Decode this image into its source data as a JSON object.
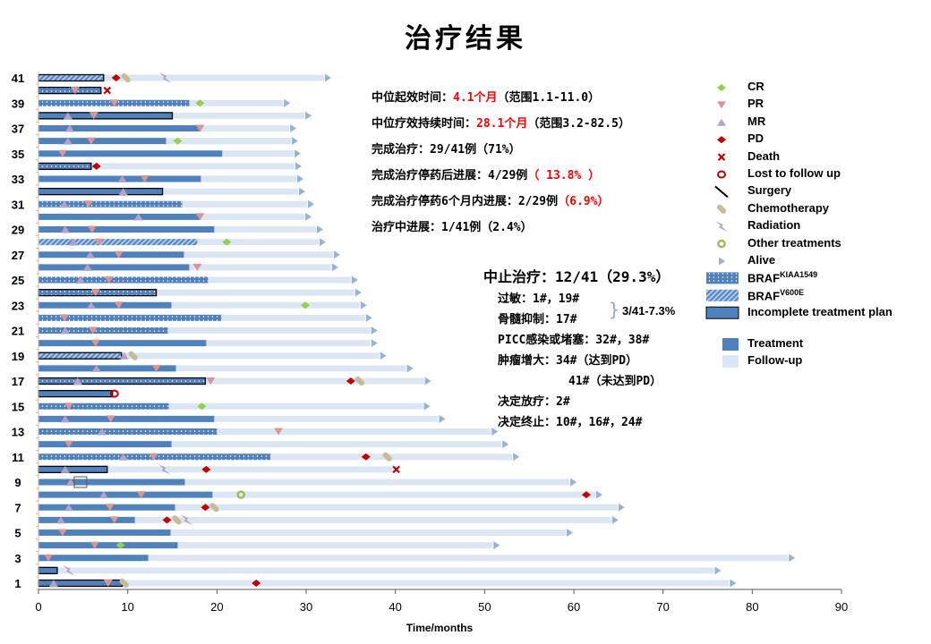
{
  "title": "治疗结果",
  "summary": {
    "line1": {
      "label": "中位起效时间：",
      "value": "4.1个月",
      "range": "（范围1.1-11.0）"
    },
    "line2": {
      "label": "中位疗效持续时间：",
      "value": "28.1个月",
      "range": "（范围3.2-82.5）"
    },
    "line3": "完成治疗：29/41例（71%）",
    "line4": {
      "label": "完成治疗停药后进展：4/29例",
      "value": "（ 13.8% ）"
    },
    "line5": {
      "label": "完成治疗停药6个月内进展：2/29例",
      "value": "（6.9%）"
    },
    "line6": "治疗中进展：1/41例（2.4%）"
  },
  "discontinued": {
    "heading": "中止治疗：12/41（29.3%）",
    "allergy": "过敏：1#，19#",
    "marrow": "骨髓抑制：17#",
    "bracket": "}",
    "bracket_note": "3/41-7.3%",
    "picc": "PICC感染或堵塞：32#，38#",
    "tumor_growth": "肿瘤增大：34#（达到PD）",
    "tumor_growth2": "41#（未达到PD）",
    "radiotherapy": "决定放疗：2#",
    "terminate": "决定终止：10#，16#，24#"
  },
  "legend": [
    {
      "type": "CR",
      "label": "CR"
    },
    {
      "type": "PR",
      "label": "PR"
    },
    {
      "type": "MR",
      "label": "MR"
    },
    {
      "type": "PD",
      "label": "PD"
    },
    {
      "type": "death",
      "label": "Death"
    },
    {
      "type": "lost",
      "label": "Lost to follow up"
    },
    {
      "type": "surgery",
      "label": "Surgery"
    },
    {
      "type": "chemo",
      "label": "Chemotherapy"
    },
    {
      "type": "radiation",
      "label": "Radiation"
    },
    {
      "type": "other",
      "label": "Other treatments"
    },
    {
      "type": "alive",
      "label": "Alive"
    },
    {
      "type": "KIAA1549",
      "label": "BRAF",
      "sup": "KIAA1549"
    },
    {
      "type": "V600E",
      "label": "BRAF",
      "sup": "V600E"
    },
    {
      "type": "incomplete",
      "label": "Incomplete treatment plan"
    },
    {
      "type": "treatment",
      "label": "Treatment"
    },
    {
      "type": "followup",
      "label": "Follow-up"
    }
  ],
  "colors": {
    "treatment": "#4f81bd",
    "followup": "#dce6f2",
    "CR": "#92d050",
    "PR": "#d99694",
    "MR": "#b3a2c7",
    "PD": "#c00000",
    "death": "#c00000",
    "lost": "#c00000",
    "chemo": "#c4bd97",
    "radiation": "#b3a2c7",
    "other": "#9bbb59",
    "alive": "#95b3d7"
  },
  "chart_data": {
    "type": "swimmer",
    "xlabel": "Time/months",
    "xlim": [
      0,
      90
    ],
    "xticks": [
      0,
      10,
      20,
      30,
      40,
      50,
      60,
      70,
      80,
      90
    ],
    "ytick_labels": [
      "1",
      "3",
      "5",
      "7",
      "9",
      "11",
      "13",
      "15",
      "17",
      "19",
      "21",
      "23",
      "25",
      "27",
      "29",
      "31",
      "33",
      "35",
      "37",
      "39",
      "41"
    ],
    "patients": [
      {
        "id": 1,
        "treatment_end": 9.4,
        "followup_end": 77.4,
        "pattern": "solid",
        "incomplete": true,
        "alive": true,
        "events": [
          {
            "type": "MR",
            "t": 1.7
          },
          {
            "type": "PR",
            "t": 7.8
          },
          {
            "type": "chemo",
            "t": 9.6
          },
          {
            "type": "PD",
            "t": 24.4
          }
        ]
      },
      {
        "id": 2,
        "treatment_end": 2.1,
        "followup_end": 75.7,
        "pattern": "solid",
        "incomplete": true,
        "alive": true,
        "events": [
          {
            "type": "radiation",
            "t": 3.4
          }
        ]
      },
      {
        "id": 3,
        "treatment_end": 12.3,
        "followup_end": 84.0,
        "pattern": "solid",
        "incomplete": false,
        "alive": true,
        "events": [
          {
            "type": "PR",
            "t": 1.1
          }
        ]
      },
      {
        "id": 4,
        "treatment_end": 15.6,
        "followup_end": 50.9,
        "pattern": "solid",
        "incomplete": false,
        "alive": true,
        "events": [
          {
            "type": "PR",
            "t": 6.3
          },
          {
            "type": "CR",
            "t": 9.2
          }
        ]
      },
      {
        "id": 5,
        "treatment_end": 14.8,
        "followup_end": 59.1,
        "pattern": "solid",
        "incomplete": false,
        "alive": true,
        "events": [
          {
            "type": "PR",
            "t": 2.7
          }
        ]
      },
      {
        "id": 6,
        "treatment_end": 10.8,
        "followup_end": 64.2,
        "pattern": "solid",
        "incomplete": false,
        "alive": true,
        "events": [
          {
            "type": "MR",
            "t": 2.5
          },
          {
            "type": "PR",
            "t": 8.5
          },
          {
            "type": "PD",
            "t": 14.4
          },
          {
            "type": "chemo",
            "t": 15.5
          },
          {
            "type": "radiation",
            "t": 16.6
          }
        ]
      },
      {
        "id": 7,
        "treatment_end": 15.3,
        "followup_end": 64.9,
        "pattern": "solid",
        "incomplete": false,
        "alive": true,
        "events": [
          {
            "type": "MR",
            "t": 3.4
          },
          {
            "type": "PR",
            "t": 8.0
          },
          {
            "type": "PD",
            "t": 18.7
          },
          {
            "type": "chemo",
            "t": 19.7
          }
        ]
      },
      {
        "id": 8,
        "treatment_end": 19.5,
        "followup_end": 62.4,
        "pattern": "solid",
        "incomplete": false,
        "alive": true,
        "events": [
          {
            "type": "MR",
            "t": 7.3
          },
          {
            "type": "PR",
            "t": 11.5
          },
          {
            "type": "other",
            "t": 22.7
          },
          {
            "type": "PD",
            "t": 61.4
          }
        ]
      },
      {
        "id": 9,
        "treatment_end": 16.4,
        "followup_end": 59.5,
        "pattern": "solid",
        "incomplete": false,
        "alive": true,
        "events": [
          {
            "type": "MR",
            "t": 3.6
          },
          {
            "type": "box",
            "t": 4.6
          }
        ]
      },
      {
        "id": 10,
        "treatment_end": 7.7,
        "followup_end": 40.1,
        "pattern": "solid",
        "incomplete": true,
        "alive": false,
        "events": [
          {
            "type": "MR",
            "t": 3.0
          },
          {
            "type": "radiation",
            "t": 14.1
          },
          {
            "type": "PD",
            "t": 18.8
          },
          {
            "type": "death",
            "t": 40.1
          }
        ]
      },
      {
        "id": 11,
        "treatment_end": 26.0,
        "followup_end": 53.1,
        "pattern": "KIAA1549",
        "incomplete": false,
        "alive": true,
        "events": [
          {
            "type": "MR",
            "t": 9.5
          },
          {
            "type": "PR",
            "t": 12.9
          },
          {
            "type": "PD",
            "t": 36.7
          },
          {
            "type": "chemo",
            "t": 39.1
          }
        ]
      },
      {
        "id": 12,
        "treatment_end": 14.9,
        "followup_end": 51.9,
        "pattern": "solid",
        "incomplete": false,
        "alive": true,
        "events": [
          {
            "type": "PR",
            "t": 3.4
          }
        ]
      },
      {
        "id": 13,
        "treatment_end": 20.0,
        "followup_end": 50.7,
        "pattern": "KIAA1549",
        "incomplete": false,
        "alive": true,
        "events": [
          {
            "type": "MR",
            "t": 7.1
          },
          {
            "type": "PR",
            "t": 26.9
          }
        ]
      },
      {
        "id": 14,
        "treatment_end": 19.7,
        "followup_end": 44.8,
        "pattern": "solid",
        "incomplete": false,
        "alive": true,
        "events": [
          {
            "type": "MR",
            "t": 3.0
          },
          {
            "type": "PR",
            "t": 8.1
          }
        ]
      },
      {
        "id": 15,
        "treatment_end": 14.6,
        "followup_end": 43.1,
        "pattern": "KIAA1549",
        "incomplete": false,
        "alive": true,
        "events": [
          {
            "type": "PR",
            "t": 3.4
          },
          {
            "type": "CR",
            "t": 18.3
          }
        ]
      },
      {
        "id": 16,
        "treatment_end": 8.3,
        "followup_end": 8.3,
        "pattern": "solid",
        "incomplete": true,
        "alive": false,
        "events": [
          {
            "type": "lost",
            "t": 8.5
          }
        ]
      },
      {
        "id": 17,
        "treatment_end": 18.7,
        "followup_end": 43.2,
        "pattern": "KIAA1549",
        "incomplete": true,
        "alive": true,
        "events": [
          {
            "type": "MR",
            "t": 4.4
          },
          {
            "type": "PR",
            "t": 19.3
          },
          {
            "type": "PD",
            "t": 35.0
          },
          {
            "type": "chemo",
            "t": 36.0
          }
        ]
      },
      {
        "id": 18,
        "treatment_end": 15.4,
        "followup_end": 41.2,
        "pattern": "solid",
        "incomplete": false,
        "alive": true,
        "events": [
          {
            "type": "MR",
            "t": 6.5
          },
          {
            "type": "PR",
            "t": 13.2
          }
        ]
      },
      {
        "id": 19,
        "treatment_end": 9.3,
        "followup_end": 38.2,
        "pattern": "V600E",
        "incomplete": true,
        "alive": true,
        "events": [
          {
            "type": "MR",
            "t": 9.6
          },
          {
            "type": "chemo",
            "t": 10.6
          }
        ]
      },
      {
        "id": 20,
        "treatment_end": 18.8,
        "followup_end": 37.2,
        "pattern": "solid",
        "incomplete": false,
        "alive": true,
        "events": [
          {
            "type": "PR",
            "t": 6.4
          }
        ]
      },
      {
        "id": 21,
        "treatment_end": 14.5,
        "followup_end": 37.2,
        "pattern": "KIAA1549",
        "incomplete": false,
        "alive": true,
        "events": [
          {
            "type": "MR",
            "t": 3.0
          },
          {
            "type": "PR",
            "t": 6.1
          }
        ]
      },
      {
        "id": 22,
        "treatment_end": 20.5,
        "followup_end": 36.6,
        "pattern": "KIAA1549",
        "incomplete": false,
        "alive": true,
        "events": [
          {
            "type": "PR",
            "t": 2.9
          }
        ]
      },
      {
        "id": 23,
        "treatment_end": 14.9,
        "followup_end": 36.0,
        "pattern": "solid",
        "incomplete": false,
        "alive": true,
        "events": [
          {
            "type": "MR",
            "t": 5.9
          },
          {
            "type": "PR",
            "t": 9.0
          },
          {
            "type": "CR",
            "t": 29.9
          }
        ]
      },
      {
        "id": 24,
        "treatment_end": 13.2,
        "followup_end": 35.4,
        "pattern": "KIAA1549",
        "incomplete": true,
        "alive": true,
        "events": [
          {
            "type": "PR",
            "t": 6.4
          }
        ]
      },
      {
        "id": 25,
        "treatment_end": 19.0,
        "followup_end": 35.0,
        "pattern": "KIAA1549",
        "incomplete": false,
        "alive": true,
        "events": [
          {
            "type": "MR",
            "t": 4.7
          },
          {
            "type": "PR",
            "t": 7.9
          }
        ]
      },
      {
        "id": 26,
        "treatment_end": 16.9,
        "followup_end": 32.8,
        "pattern": "solid",
        "incomplete": false,
        "alive": true,
        "events": [
          {
            "type": "MR",
            "t": 5.5
          },
          {
            "type": "PR",
            "t": 17.8
          }
        ]
      },
      {
        "id": 27,
        "treatment_end": 16.3,
        "followup_end": 33.0,
        "pattern": "solid",
        "incomplete": false,
        "alive": true,
        "events": [
          {
            "type": "MR",
            "t": 5.8
          },
          {
            "type": "PR",
            "t": 9.0
          }
        ]
      },
      {
        "id": 28,
        "treatment_end": 17.8,
        "followup_end": 31.4,
        "pattern": "V600E",
        "incomplete": false,
        "alive": true,
        "events": [
          {
            "type": "MR",
            "t": 3.9
          },
          {
            "type": "PR",
            "t": 6.8
          },
          {
            "type": "CR",
            "t": 21.1
          }
        ]
      },
      {
        "id": 29,
        "treatment_end": 19.7,
        "followup_end": 31.1,
        "pattern": "solid",
        "incomplete": false,
        "alive": true,
        "events": [
          {
            "type": "MR",
            "t": 3.0
          },
          {
            "type": "PR",
            "t": 6.0
          }
        ]
      },
      {
        "id": 30,
        "treatment_end": 18.2,
        "followup_end": 29.8,
        "pattern": "solid",
        "incomplete": false,
        "alive": true,
        "events": [
          {
            "type": "MR",
            "t": 11.2
          },
          {
            "type": "PR",
            "t": 18.1
          }
        ]
      },
      {
        "id": 31,
        "treatment_end": 16.1,
        "followup_end": 30.1,
        "pattern": "KIAA1549",
        "incomplete": false,
        "alive": true,
        "events": [
          {
            "type": "MR",
            "t": 2.9
          },
          {
            "type": "PR",
            "t": 5.6
          }
        ]
      },
      {
        "id": 32,
        "treatment_end": 13.9,
        "followup_end": 29.1,
        "pattern": "solid",
        "incomplete": true,
        "alive": true,
        "events": [
          {
            "type": "MR",
            "t": 9.5
          }
        ]
      },
      {
        "id": 33,
        "treatment_end": 18.2,
        "followup_end": 28.9,
        "pattern": "solid",
        "incomplete": false,
        "alive": true,
        "events": [
          {
            "type": "MR",
            "t": 9.4
          },
          {
            "type": "PR",
            "t": 11.9
          }
        ]
      },
      {
        "id": 34,
        "treatment_end": 5.9,
        "followup_end": 28.7,
        "pattern": "KIAA1549",
        "incomplete": true,
        "alive": true,
        "events": [
          {
            "type": "PD",
            "t": 6.5
          }
        ]
      },
      {
        "id": 35,
        "treatment_end": 20.6,
        "followup_end": 28.6,
        "pattern": "solid",
        "incomplete": false,
        "alive": true,
        "events": [
          {
            "type": "PR",
            "t": 2.7
          }
        ]
      },
      {
        "id": 36,
        "treatment_end": 14.3,
        "followup_end": 28.3,
        "pattern": "solid",
        "incomplete": false,
        "alive": true,
        "events": [
          {
            "type": "MR",
            "t": 3.3
          },
          {
            "type": "PR",
            "t": 5.9
          },
          {
            "type": "CR",
            "t": 15.6
          }
        ]
      },
      {
        "id": 37,
        "treatment_end": 18.2,
        "followup_end": 28.1,
        "pattern": "solid",
        "incomplete": false,
        "alive": true,
        "events": [
          {
            "type": "MR",
            "t": 3.5
          },
          {
            "type": "PR",
            "t": 18.1
          }
        ]
      },
      {
        "id": 38,
        "treatment_end": 15.0,
        "followup_end": 29.8,
        "pattern": "solid",
        "incomplete": true,
        "alive": true,
        "events": [
          {
            "type": "MR",
            "t": 3.3
          },
          {
            "type": "PR",
            "t": 6.2
          }
        ]
      },
      {
        "id": 39,
        "treatment_end": 16.9,
        "followup_end": 27.4,
        "pattern": "KIAA1549",
        "incomplete": false,
        "alive": true,
        "events": [
          {
            "type": "PR",
            "t": 8.5
          },
          {
            "type": "CR",
            "t": 18.1
          }
        ]
      },
      {
        "id": 40,
        "treatment_end": 7.0,
        "followup_end": 7.0,
        "pattern": "KIAA1549",
        "incomplete": true,
        "alive": false,
        "events": [
          {
            "type": "PR",
            "t": 4.1
          },
          {
            "type": "death",
            "t": 7.7
          }
        ]
      },
      {
        "id": 41,
        "treatment_end": 7.3,
        "followup_end": 32.0,
        "pattern": "V600E",
        "incomplete": true,
        "alive": true,
        "events": [
          {
            "type": "PD",
            "t": 8.7
          },
          {
            "type": "chemo",
            "t": 9.8
          },
          {
            "type": "radiation",
            "t": 14.2
          }
        ]
      }
    ]
  }
}
